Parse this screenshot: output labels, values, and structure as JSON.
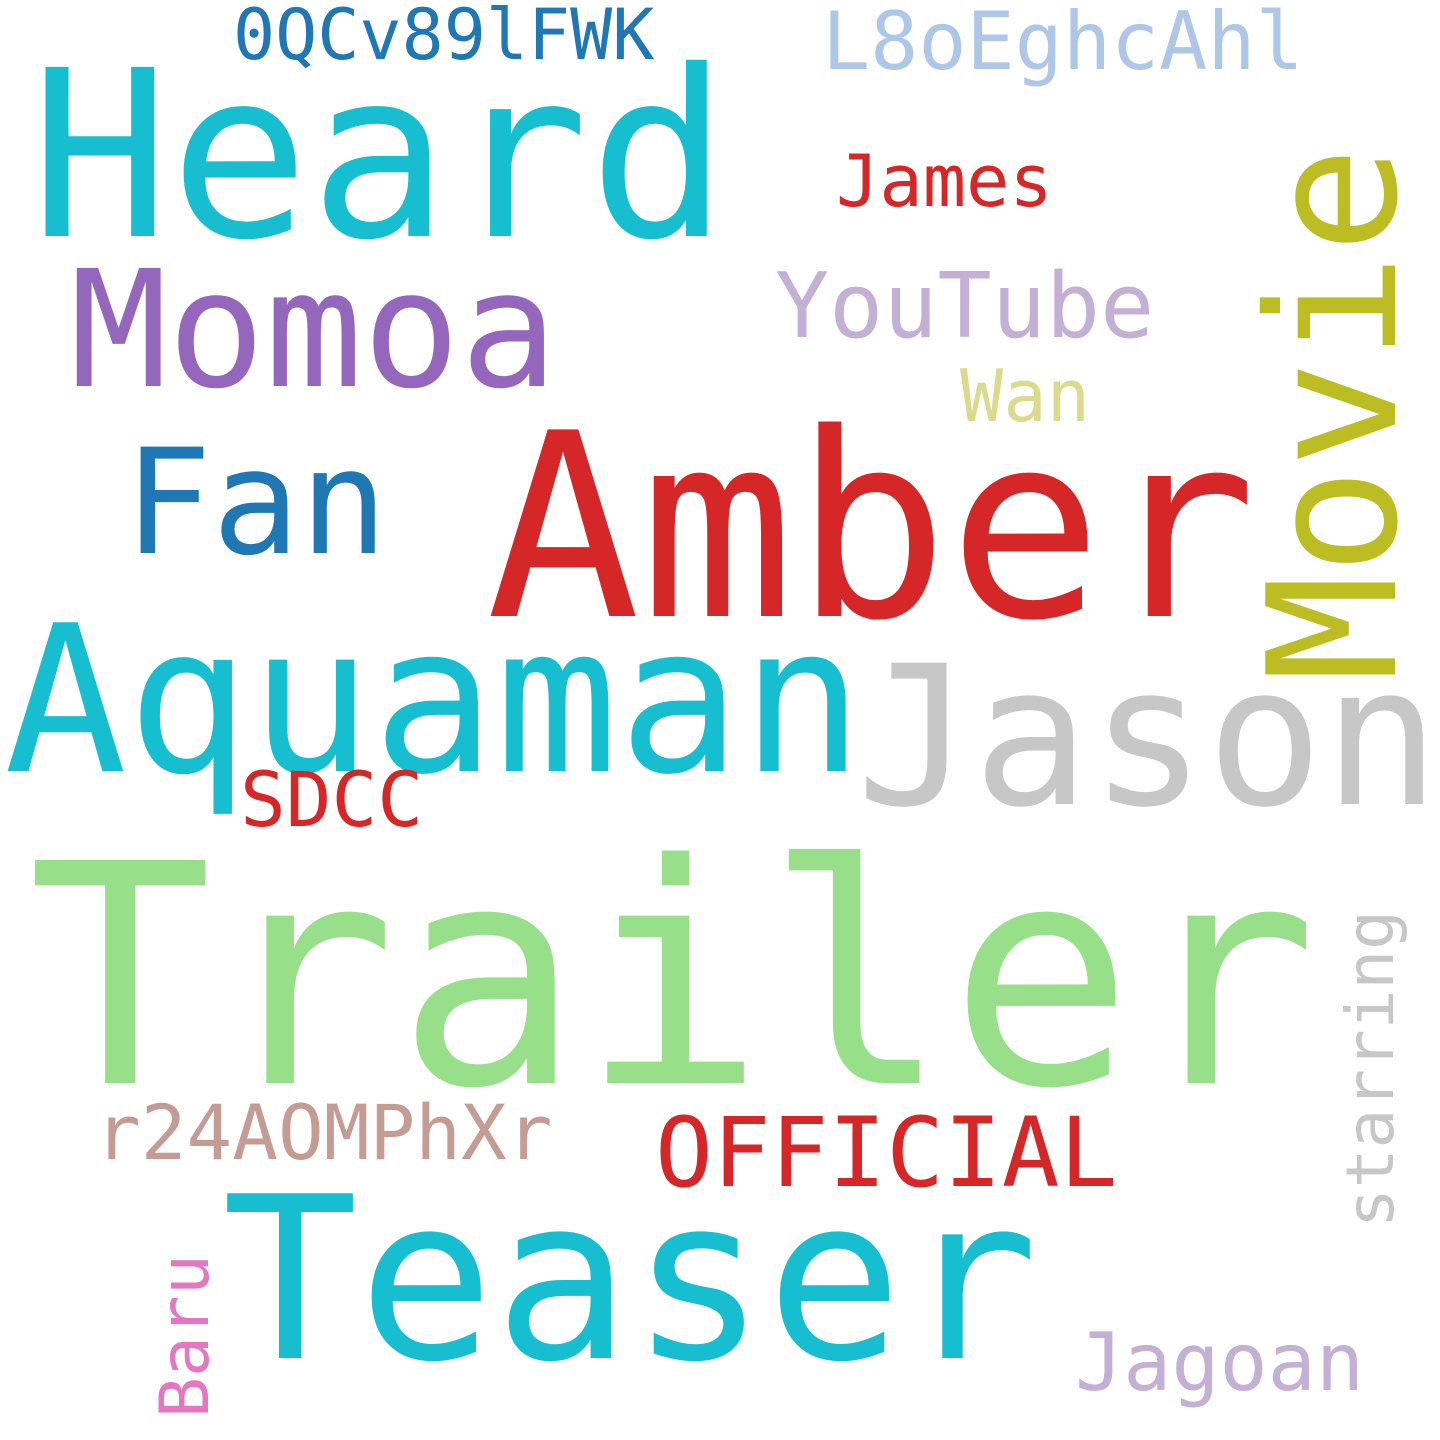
{
  "words": {
    "heard": {
      "text": "Heard",
      "color": "#17becf"
    },
    "momoa": {
      "text": "Momoa",
      "color": "#9467bd"
    },
    "movie": {
      "text": "Movie",
      "color": "#bcbd22"
    },
    "amber": {
      "text": "Amber",
      "color": "#d62728"
    },
    "fan": {
      "text": "Fan",
      "color": "#1f77b4"
    },
    "aquaman": {
      "text": "Aquaman",
      "color": "#17becf"
    },
    "jason": {
      "text": "Jason",
      "color": "#c7c7c7"
    },
    "trailer": {
      "text": "Trailer",
      "color": "#98df8a"
    },
    "teaser": {
      "text": "Teaser",
      "color": "#17becf"
    },
    "official": {
      "text": "OFFICIAL",
      "color": "#d62728"
    },
    "youtube": {
      "text": "YouTube",
      "color": "#c5b0d5"
    },
    "james": {
      "text": "James",
      "color": "#d62728"
    },
    "wan": {
      "text": "Wan",
      "color": "#dbdb8d"
    },
    "sdcc": {
      "text": "SDCC",
      "color": "#d62728"
    },
    "starring": {
      "text": "starring",
      "color": "#c7c7c7"
    },
    "baru": {
      "text": "Baru",
      "color": "#e377c2"
    },
    "jagoan": {
      "text": "Jagoan",
      "color": "#c5b0d5"
    },
    "id1": {
      "text": "0QCv89lFWK",
      "color": "#1f77b4"
    },
    "id2": {
      "text": "L8oEghcAhl",
      "color": "#aec7e8"
    },
    "id3": {
      "text": "r24AOMPhXr",
      "color": "#c49c94"
    }
  }
}
